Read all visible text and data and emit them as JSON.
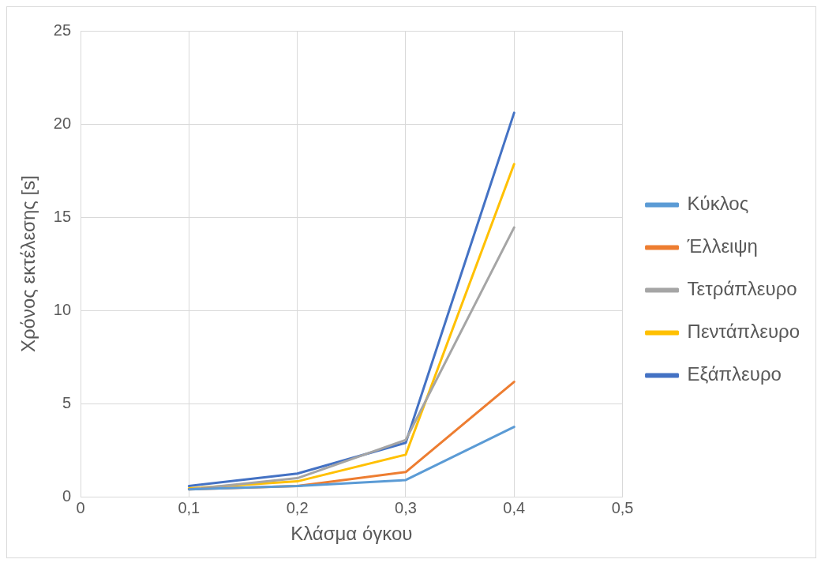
{
  "chart_data": {
    "type": "line",
    "xlabel": "Κλάσμα όγκου",
    "ylabel": "Χρόνος εκτέλεσης [s]",
    "x": [
      0.1,
      0.2,
      0.3,
      0.4
    ],
    "series": [
      {
        "name": "Κύκλος",
        "color": "#5b9bd5",
        "values": [
          0.4,
          0.58,
          0.9,
          3.75
        ]
      },
      {
        "name": "Έλλειψη",
        "color": "#ed7d31",
        "values": [
          0.4,
          0.58,
          1.33,
          6.17
        ]
      },
      {
        "name": "Τετράπλευρο",
        "color": "#a5a5a5",
        "values": [
          0.4,
          1.0,
          3.05,
          14.45
        ]
      },
      {
        "name": "Πεντάπλευρο",
        "color": "#ffc000",
        "values": [
          0.45,
          0.83,
          2.26,
          17.85
        ]
      },
      {
        "name": "Εξάπλευρο",
        "color": "#4472c4",
        "values": [
          0.58,
          1.25,
          2.9,
          20.6
        ]
      }
    ],
    "xlim": [
      0,
      0.5
    ],
    "xticks": [
      0,
      {
        "value": 0.1,
        "label": "0,1"
      },
      {
        "value": 0.2,
        "label": "0,2"
      },
      {
        "value": 0.3,
        "label": "0,3"
      },
      {
        "value": 0.4,
        "label": "0,4"
      },
      {
        "value": 0.5,
        "label": "0,5"
      }
    ],
    "ylim": [
      0,
      25
    ],
    "yticks": [
      0,
      5,
      10,
      15,
      20,
      25
    ],
    "grid": true,
    "legend": "right",
    "marker": "none",
    "line_style": "solid"
  }
}
